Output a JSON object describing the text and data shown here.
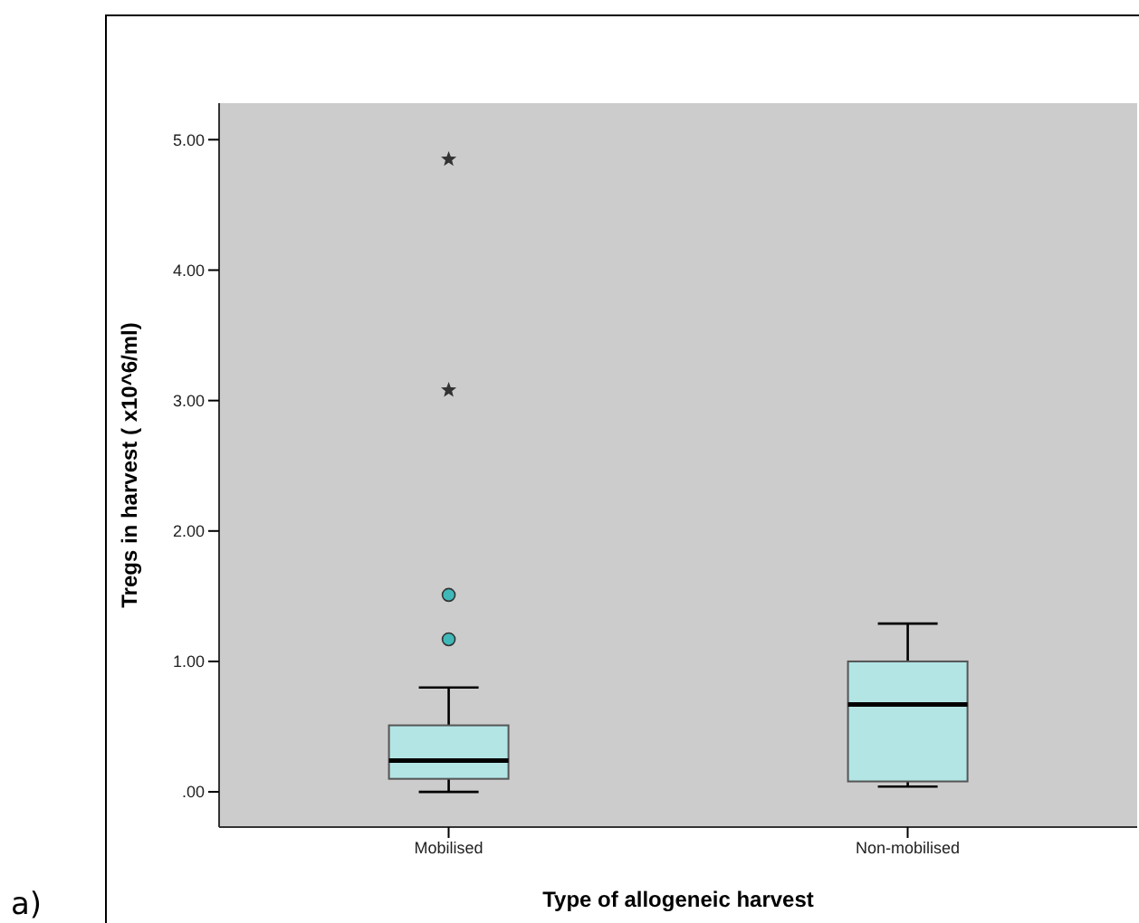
{
  "chart_data": {
    "type": "box",
    "xlabel": "Type of allogeneic harvest",
    "ylabel": "Tregs in harvest ( x10^6/ml)",
    "categories": [
      "Mobilised",
      "Non-mobilised"
    ],
    "color": "#b3e5e5",
    "boxes": [
      {
        "low": 0.0,
        "q1": 0.1,
        "median": 0.24,
        "q3": 0.51,
        "high": 0.8,
        "outliers": [
          1.17,
          1.51,
          3.08,
          4.85
        ]
      },
      {
        "low": 0.04,
        "q1": 0.08,
        "median": 0.67,
        "q3": 1.0,
        "high": 1.29
      }
    ],
    "ylim": [
      -0.27,
      5.28
    ],
    "yticks": [
      {
        "value": 0,
        "label": ".00"
      },
      {
        "value": 1,
        "label": "1.00"
      },
      {
        "value": 2,
        "label": "2.00"
      },
      {
        "value": 3,
        "label": "3.00"
      },
      {
        "value": 4,
        "label": "4.00"
      },
      {
        "value": 5,
        "label": "5.00"
      }
    ],
    "grid": false,
    "annotations": [
      "a)"
    ]
  }
}
